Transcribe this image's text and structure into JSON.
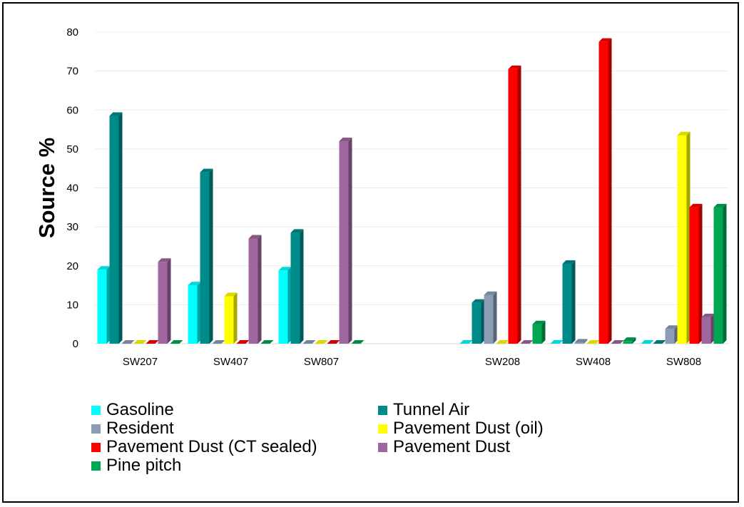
{
  "chart_data": {
    "type": "bar",
    "ylabel": "Source %",
    "ylim": [
      0,
      80
    ],
    "yticks": [
      0,
      10,
      20,
      30,
      40,
      50,
      60,
      70,
      80
    ],
    "grid": true,
    "categories": [
      "SW207",
      "SW407",
      "SW807",
      "",
      "SW208",
      "SW408",
      "SW808"
    ],
    "series": [
      {
        "name": "Gasoline",
        "color": "#00FFFF",
        "values": [
          19,
          15,
          18.8,
          null,
          0,
          0,
          0
        ]
      },
      {
        "name": "Tunnel Air",
        "color": "#008B8B",
        "values": [
          58.5,
          44,
          28.5,
          null,
          10.5,
          20.5,
          0
        ]
      },
      {
        "name": "Resident",
        "color": "#8C9CB4",
        "values": [
          0,
          0,
          0,
          null,
          12.5,
          0.3,
          3.8
        ]
      },
      {
        "name": "Pavement Dust (oil)",
        "color": "#FFFF00",
        "values": [
          0,
          12.2,
          0,
          null,
          0,
          0,
          53.5
        ]
      },
      {
        "name": "Pavement Dust (CT sealed)",
        "color": "#FF0000",
        "values": [
          0,
          0,
          0,
          null,
          70.5,
          77.5,
          35
        ]
      },
      {
        "name": "Pavement Dust",
        "color": "#A066A0",
        "values": [
          21,
          27,
          52,
          null,
          0,
          0,
          6.8
        ]
      },
      {
        "name": "Pine pitch",
        "color": "#00A651",
        "values": [
          0,
          0,
          0,
          null,
          5,
          0.7,
          35
        ]
      }
    ],
    "legend_position": "bottom"
  }
}
